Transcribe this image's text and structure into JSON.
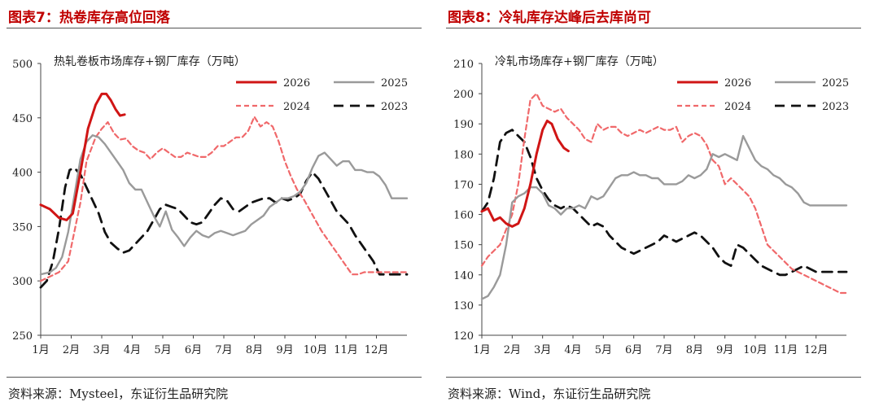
{
  "chart_data": [
    {
      "type": "line",
      "figure_title": "图表7：热卷库存高位回落",
      "title": "热轧卷板市场库存+钢厂库存（万吨）",
      "source": "资料来源：Mysteel，东证衍生品研究院",
      "x_ticks": [
        "1月",
        "2月",
        "3月",
        "4月",
        "5月",
        "6月",
        "7月",
        "8月",
        "9月",
        "10月",
        "11月",
        "12月"
      ],
      "x_range": [
        1,
        13
      ],
      "ylim": [
        250,
        500
      ],
      "y_ticks": [
        250,
        300,
        350,
        400,
        450,
        500
      ],
      "legend_position": "top-right",
      "series": [
        {
          "name": "2026",
          "color": "#d01515",
          "style": "solid",
          "x": [
            1.0,
            1.3,
            1.6,
            1.85,
            2.05,
            2.3,
            2.55,
            2.8,
            3.0,
            3.15,
            3.3,
            3.45,
            3.6,
            3.75
          ],
          "y": [
            370,
            366,
            358,
            356,
            362,
            400,
            440,
            462,
            472,
            472,
            466,
            458,
            452,
            453
          ]
        },
        {
          "name": "2025",
          "color": "#9a9a9a",
          "style": "solid",
          "x": [
            1.0,
            1.3,
            1.5,
            1.7,
            1.9,
            2.1,
            2.3,
            2.5,
            2.7,
            2.9,
            3.1,
            3.3,
            3.5,
            3.7,
            3.9,
            4.1,
            4.3,
            4.5,
            4.7,
            4.9,
            5.1,
            5.3,
            5.5,
            5.7,
            5.9,
            6.1,
            6.3,
            6.5,
            6.7,
            6.9,
            7.1,
            7.3,
            7.5,
            7.7,
            7.9,
            8.1,
            8.3,
            8.5,
            8.7,
            8.9,
            9.1,
            9.3,
            9.5,
            9.7,
            9.9,
            10.1,
            10.3,
            10.5,
            10.7,
            10.9,
            11.1,
            11.3,
            11.5,
            11.7,
            11.9,
            12.1,
            12.3,
            12.5,
            12.7,
            12.9,
            13.0
          ],
          "y": [
            306,
            308,
            312,
            322,
            345,
            378,
            412,
            428,
            434,
            432,
            426,
            418,
            410,
            402,
            390,
            384,
            384,
            372,
            360,
            350,
            364,
            347,
            340,
            332,
            340,
            346,
            342,
            340,
            344,
            346,
            344,
            342,
            344,
            346,
            352,
            356,
            360,
            368,
            372,
            376,
            376,
            378,
            382,
            390,
            404,
            415,
            418,
            412,
            406,
            410,
            410,
            402,
            402,
            400,
            400,
            396,
            388,
            376,
            376,
            376,
            376
          ]
        },
        {
          "name": "2024",
          "color": "#f0686a",
          "style": "dashed",
          "x": [
            1.0,
            1.3,
            1.6,
            1.9,
            2.1,
            2.3,
            2.5,
            2.8,
            3.0,
            3.2,
            3.4,
            3.6,
            3.8,
            4.0,
            4.2,
            4.4,
            4.6,
            4.8,
            5.0,
            5.2,
            5.4,
            5.6,
            5.8,
            6.0,
            6.2,
            6.4,
            6.6,
            6.8,
            7.0,
            7.2,
            7.4,
            7.6,
            7.8,
            8.0,
            8.2,
            8.4,
            8.6,
            8.8,
            9.0,
            9.2,
            9.4,
            9.6,
            9.8,
            10.0,
            10.2,
            10.4,
            10.6,
            10.8,
            11.0,
            11.2,
            11.4,
            11.6,
            11.8,
            12.0,
            12.2,
            12.4,
            12.6,
            12.8,
            13.0
          ],
          "y": [
            300,
            304,
            308,
            318,
            345,
            372,
            410,
            432,
            440,
            446,
            436,
            430,
            431,
            424,
            420,
            418,
            412,
            418,
            422,
            418,
            414,
            414,
            418,
            416,
            414,
            414,
            418,
            424,
            424,
            428,
            432,
            432,
            438,
            451,
            442,
            446,
            442,
            428,
            410,
            396,
            384,
            376,
            366,
            356,
            346,
            338,
            330,
            322,
            314,
            306,
            306,
            308,
            308,
            308,
            308,
            308,
            308,
            308,
            308
          ]
        },
        {
          "name": "2023",
          "color": "#111111",
          "style": "dashed",
          "x": [
            1.0,
            1.2,
            1.4,
            1.6,
            1.8,
            1.95,
            2.1,
            2.3,
            2.5,
            2.7,
            2.9,
            3.1,
            3.3,
            3.5,
            3.7,
            3.9,
            4.1,
            4.3,
            4.5,
            4.7,
            4.9,
            5.1,
            5.3,
            5.5,
            5.7,
            5.9,
            6.1,
            6.3,
            6.5,
            6.7,
            6.9,
            7.1,
            7.3,
            7.5,
            7.7,
            7.9,
            8.1,
            8.3,
            8.5,
            8.7,
            8.9,
            9.1,
            9.3,
            9.5,
            9.7,
            9.9,
            10.1,
            10.3,
            10.5,
            10.7,
            10.9,
            11.1,
            11.3,
            11.5,
            11.7,
            11.9,
            12.1,
            12.3,
            12.5,
            12.7,
            12.9,
            13.0
          ],
          "y": [
            294,
            300,
            318,
            348,
            386,
            402,
            404,
            398,
            386,
            374,
            362,
            345,
            335,
            330,
            326,
            328,
            334,
            340,
            346,
            356,
            366,
            370,
            368,
            366,
            360,
            354,
            352,
            354,
            362,
            370,
            376,
            374,
            366,
            364,
            368,
            372,
            374,
            376,
            376,
            372,
            376,
            374,
            376,
            380,
            392,
            400,
            394,
            384,
            374,
            364,
            358,
            352,
            342,
            334,
            326,
            318,
            306,
            306,
            306,
            306,
            306,
            306
          ]
        }
      ]
    },
    {
      "type": "line",
      "figure_title": "图表8：冷轧库存达峰后去库尚可",
      "title": "冷轧市场库存+钢厂库存（万吨）",
      "source": "资料来源：Wind，东证衍生品研究院",
      "x_ticks": [
        "1月",
        "2月",
        "3月",
        "4月",
        "5月",
        "6月",
        "7月",
        "8月",
        "9月",
        "10月",
        "11月",
        "12月"
      ],
      "x_range": [
        1,
        13
      ],
      "ylim": [
        120,
        210
      ],
      "y_ticks": [
        120,
        130,
        140,
        150,
        160,
        170,
        180,
        190,
        200,
        210
      ],
      "legend_position": "top-right",
      "series": [
        {
          "name": "2026",
          "color": "#d01515",
          "style": "solid",
          "x": [
            1.0,
            1.2,
            1.4,
            1.6,
            1.8,
            2.0,
            2.2,
            2.4,
            2.6,
            2.8,
            3.0,
            3.15,
            3.3,
            3.5,
            3.7,
            3.85
          ],
          "y": [
            161,
            162,
            158,
            159,
            157,
            156,
            157,
            162,
            170,
            180,
            188,
            191,
            190,
            185,
            182,
            181
          ]
        },
        {
          "name": "2025",
          "color": "#9a9a9a",
          "style": "solid",
          "x": [
            1.0,
            1.2,
            1.4,
            1.6,
            1.8,
            2.0,
            2.2,
            2.4,
            2.6,
            2.8,
            3.0,
            3.2,
            3.4,
            3.6,
            3.8,
            4.0,
            4.2,
            4.4,
            4.6,
            4.8,
            5.0,
            5.2,
            5.4,
            5.6,
            5.8,
            6.0,
            6.2,
            6.4,
            6.6,
            6.8,
            7.0,
            7.2,
            7.4,
            7.6,
            7.8,
            8.0,
            8.2,
            8.4,
            8.6,
            8.8,
            9.0,
            9.2,
            9.4,
            9.6,
            9.8,
            10.0,
            10.2,
            10.4,
            10.6,
            10.8,
            11.0,
            11.2,
            11.4,
            11.6,
            11.8,
            12.0,
            12.2,
            12.4,
            12.6,
            12.8,
            13.0
          ],
          "y": [
            132,
            133,
            136,
            140,
            150,
            164,
            166,
            167,
            169,
            169,
            167,
            163,
            162,
            160,
            162,
            162,
            163,
            162,
            166,
            165,
            166,
            169,
            172,
            173,
            173,
            174,
            173,
            173,
            172,
            172,
            170,
            170,
            170,
            171,
            173,
            172,
            173,
            175,
            180,
            179,
            180,
            179,
            178,
            186,
            182,
            178,
            176,
            175,
            173,
            172,
            170,
            169,
            167,
            164,
            163,
            163,
            163,
            163,
            163,
            163,
            163
          ]
        },
        {
          "name": "2024",
          "color": "#f0686a",
          "style": "dashed",
          "x": [
            1.0,
            1.2,
            1.4,
            1.6,
            1.8,
            2.0,
            2.2,
            2.4,
            2.6,
            2.8,
            3.0,
            3.2,
            3.4,
            3.6,
            3.8,
            4.0,
            4.2,
            4.4,
            4.6,
            4.8,
            5.0,
            5.2,
            5.4,
            5.6,
            5.8,
            6.0,
            6.2,
            6.4,
            6.6,
            6.8,
            7.0,
            7.2,
            7.4,
            7.6,
            7.8,
            8.0,
            8.2,
            8.4,
            8.6,
            8.8,
            9.0,
            9.2,
            9.4,
            9.6,
            9.8,
            10.0,
            10.2,
            10.4,
            10.6,
            10.8,
            11.0,
            11.2,
            11.4,
            11.6,
            11.8,
            12.0,
            12.2,
            12.4,
            12.6,
            12.8,
            13.0
          ],
          "y": [
            143,
            146,
            148,
            150,
            155,
            160,
            170,
            185,
            198,
            200,
            196,
            195,
            194,
            195,
            192,
            190,
            188,
            185,
            184,
            190,
            188,
            189,
            189,
            187,
            186,
            187,
            188,
            187,
            188,
            189,
            188,
            188,
            189,
            184,
            186,
            187,
            186,
            183,
            178,
            176,
            170,
            172,
            170,
            168,
            166,
            162,
            156,
            150,
            148,
            146,
            144,
            142,
            141,
            140,
            139,
            138,
            137,
            136,
            135,
            134,
            134
          ]
        },
        {
          "name": "2023",
          "color": "#111111",
          "style": "dashed",
          "x": [
            1.0,
            1.2,
            1.4,
            1.6,
            1.8,
            2.0,
            2.2,
            2.4,
            2.6,
            2.8,
            3.0,
            3.2,
            3.4,
            3.6,
            3.8,
            4.0,
            4.2,
            4.4,
            4.6,
            4.8,
            5.0,
            5.2,
            5.4,
            5.6,
            5.8,
            6.0,
            6.2,
            6.4,
            6.6,
            6.8,
            7.0,
            7.2,
            7.4,
            7.6,
            7.8,
            8.0,
            8.2,
            8.4,
            8.6,
            8.8,
            9.0,
            9.2,
            9.4,
            9.6,
            9.8,
            10.0,
            10.2,
            10.4,
            10.6,
            10.8,
            11.0,
            11.2,
            11.4,
            11.6,
            11.8,
            12.0,
            12.2,
            12.4,
            12.6,
            12.8,
            13.0
          ],
          "y": [
            161,
            164,
            172,
            184,
            187,
            188,
            186,
            184,
            179,
            172,
            168,
            165,
            163,
            162,
            163,
            162,
            160,
            158,
            156,
            157,
            156,
            153,
            151,
            149,
            148,
            147,
            148,
            149,
            150,
            151,
            153,
            152,
            151,
            152,
            153,
            154,
            153,
            151,
            149,
            146,
            144,
            143,
            150,
            149,
            147,
            145,
            143,
            142,
            141,
            140,
            140,
            141,
            142,
            143,
            142,
            141,
            141,
            141,
            141,
            141,
            141
          ]
        }
      ]
    }
  ]
}
